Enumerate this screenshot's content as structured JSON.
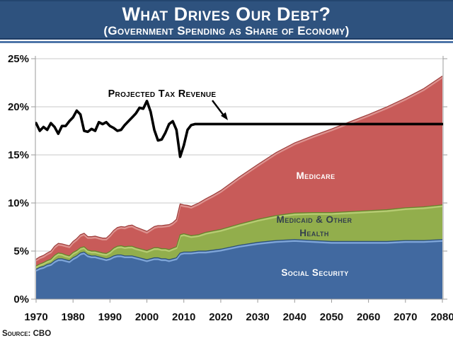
{
  "banner": {
    "title": "What Drives Our Debt?",
    "subtitle": "(Government Spending as Share of Economy)",
    "bg_color": "#2E527E",
    "text_color": "#FFFFFF"
  },
  "source": {
    "text": "Source: CBO"
  },
  "chart_data": {
    "type": "area",
    "stacked": true,
    "title": "What Drives Our Debt?",
    "subtitle": "(Government Spending as Share of Economy)",
    "grid": "horizontal",
    "gridline_color": "#C9C9C9",
    "axis_color": "#9B9B9B",
    "x_range": [
      1970,
      2080
    ],
    "y_range": [
      0,
      25
    ],
    "x_ticks": [
      1970,
      1980,
      1990,
      2000,
      2010,
      2020,
      2030,
      2040,
      2050,
      2060,
      2070,
      2080
    ],
    "y_ticks": [
      {
        "value": 0,
        "label": "0%"
      },
      {
        "value": 5,
        "label": "5%"
      },
      {
        "value": 10,
        "label": "10%"
      },
      {
        "value": 15,
        "label": "15%"
      },
      {
        "value": 20,
        "label": "20%"
      },
      {
        "value": 25,
        "label": "25%"
      }
    ],
    "years": [
      1970,
      1971,
      1972,
      1973,
      1974,
      1975,
      1976,
      1977,
      1978,
      1979,
      1980,
      1981,
      1982,
      1983,
      1984,
      1985,
      1986,
      1987,
      1988,
      1989,
      1990,
      1991,
      1992,
      1993,
      1994,
      1995,
      1996,
      1997,
      1998,
      1999,
      2000,
      2001,
      2002,
      2003,
      2004,
      2005,
      2006,
      2007,
      2008,
      2009,
      2010,
      2011,
      2012,
      2014,
      2016,
      2018,
      2020,
      2025,
      2030,
      2035,
      2040,
      2045,
      2050,
      2055,
      2060,
      2065,
      2070,
      2075,
      2080
    ],
    "series": [
      {
        "name": "Social Security",
        "label_lines": [
          "Social Security"
        ],
        "color": "#4169A0",
        "edge_color": "#2A4E79",
        "highlight_color": "#7EA5D8",
        "label_color": "#FFFFFF",
        "values": [
          3.1,
          3.3,
          3.4,
          3.6,
          3.7,
          4.0,
          4.2,
          4.2,
          4.1,
          4.0,
          4.3,
          4.5,
          4.8,
          4.9,
          4.6,
          4.5,
          4.5,
          4.4,
          4.3,
          4.2,
          4.3,
          4.5,
          4.6,
          4.6,
          4.5,
          4.5,
          4.5,
          4.4,
          4.3,
          4.2,
          4.1,
          4.2,
          4.3,
          4.3,
          4.2,
          4.2,
          4.1,
          4.2,
          4.3,
          4.8,
          4.9,
          4.9,
          4.9,
          5.0,
          5.0,
          5.1,
          5.2,
          5.6,
          5.9,
          6.1,
          6.2,
          6.1,
          6.0,
          6.0,
          6.0,
          6.0,
          6.1,
          6.1,
          6.2
        ]
      },
      {
        "name": "Medicaid & Other Health",
        "label_lines": [
          "Medicaid & Other",
          "Health"
        ],
        "color": "#92AE4C",
        "edge_color": "#64832A",
        "highlight_color": "#B6CB72",
        "label_color": "#333F4D",
        "values": [
          0.35,
          0.35,
          0.4,
          0.4,
          0.45,
          0.55,
          0.6,
          0.55,
          0.5,
          0.5,
          0.55,
          0.55,
          0.55,
          0.55,
          0.5,
          0.5,
          0.5,
          0.5,
          0.5,
          0.55,
          0.65,
          0.8,
          0.9,
          0.95,
          0.95,
          1.0,
          1.0,
          0.95,
          0.95,
          0.95,
          0.95,
          1.0,
          1.05,
          1.05,
          1.05,
          1.05,
          1.05,
          1.1,
          1.15,
          1.9,
          1.9,
          1.8,
          1.7,
          1.7,
          1.95,
          2.0,
          2.05,
          2.2,
          2.4,
          2.6,
          2.75,
          2.9,
          3.0,
          3.1,
          3.2,
          3.3,
          3.4,
          3.5,
          3.6
        ]
      },
      {
        "name": "Medicare",
        "label_lines": [
          "Medicare"
        ],
        "color": "#C85B59",
        "edge_color": "#9C3D3B",
        "highlight_color": "#DD928F",
        "label_color": "#FFFFFF",
        "values": [
          0.7,
          0.75,
          0.75,
          0.8,
          0.85,
          0.95,
          1.0,
          1.0,
          1.05,
          1.05,
          1.15,
          1.25,
          1.35,
          1.4,
          1.4,
          1.5,
          1.55,
          1.55,
          1.55,
          1.6,
          1.75,
          1.85,
          1.95,
          2.0,
          2.05,
          2.15,
          2.2,
          2.15,
          2.1,
          2.05,
          2.0,
          2.1,
          2.2,
          2.3,
          2.4,
          2.45,
          2.6,
          2.65,
          2.85,
          3.2,
          3.0,
          3.05,
          3.05,
          3.3,
          3.5,
          3.75,
          4.05,
          4.9,
          5.7,
          6.55,
          7.3,
          8.0,
          8.7,
          9.35,
          10.0,
          10.7,
          11.4,
          12.3,
          13.4
        ]
      }
    ],
    "line": {
      "name": "Projected Tax Revenue",
      "color": "#000000",
      "years": [
        1970,
        1971,
        1972,
        1973,
        1974,
        1975,
        1976,
        1977,
        1978,
        1979,
        1980,
        1981,
        1982,
        1983,
        1984,
        1985,
        1986,
        1987,
        1988,
        1989,
        1990,
        1991,
        1992,
        1993,
        1994,
        1995,
        1996,
        1997,
        1998,
        1999,
        2000,
        2001,
        2002,
        2003,
        2004,
        2005,
        2006,
        2007,
        2008,
        2009,
        2010,
        2011,
        2012,
        2013,
        2080
      ],
      "values": [
        18.3,
        17.5,
        17.9,
        17.6,
        18.3,
        17.9,
        17.2,
        18.0,
        18.0,
        18.5,
        18.9,
        19.6,
        19.2,
        17.5,
        17.4,
        17.7,
        17.5,
        18.4,
        18.2,
        18.4,
        18.0,
        17.8,
        17.5,
        17.6,
        18.1,
        18.5,
        18.9,
        19.3,
        19.9,
        19.8,
        20.6,
        19.5,
        17.6,
        16.5,
        16.6,
        17.3,
        18.2,
        18.5,
        17.6,
        14.8,
        16.0,
        17.6,
        18.1,
        18.2,
        18.2
      ]
    }
  }
}
